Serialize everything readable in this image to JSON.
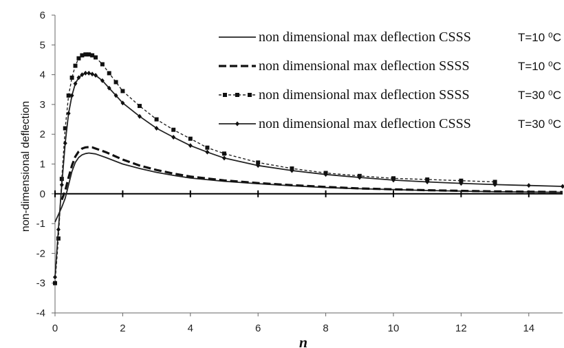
{
  "chart_data": {
    "type": "line",
    "title": "",
    "xlabel": "n",
    "ylabel": "non-dimensional deflection",
    "xlim": [
      0,
      15
    ],
    "ylim": [
      -4,
      6
    ],
    "x_ticks": [
      0,
      2,
      4,
      6,
      8,
      10,
      12,
      14
    ],
    "y_ticks": [
      -4,
      -3,
      -2,
      -1,
      0,
      1,
      2,
      3,
      4,
      5,
      6
    ],
    "grid": false,
    "legend_position": "top-right",
    "series": [
      {
        "name": "non dimensional max deflection CSSS",
        "temperature_label": "T=10 ⁰C",
        "style": "solid",
        "marker": "none",
        "x": [
          0,
          0.1,
          0.2,
          0.3,
          0.4,
          0.5,
          0.6,
          0.7,
          0.8,
          0.9,
          1.0,
          1.2,
          1.5,
          2,
          2.5,
          3,
          3.5,
          4,
          5,
          6,
          7,
          8,
          9,
          10,
          11,
          12,
          13,
          14,
          15
        ],
        "y": [
          -0.95,
          -0.7,
          -0.45,
          -0.15,
          0.3,
          0.75,
          1.05,
          1.22,
          1.31,
          1.35,
          1.37,
          1.34,
          1.22,
          1.0,
          0.85,
          0.72,
          0.62,
          0.53,
          0.42,
          0.34,
          0.27,
          0.21,
          0.17,
          0.14,
          0.11,
          0.09,
          0.07,
          0.06,
          0.05
        ]
      },
      {
        "name": "non dimensional max deflection SSSS",
        "temperature_label": "T=10 ⁰C",
        "style": "dashed",
        "marker": "none",
        "x": [
          0.2,
          0.3,
          0.4,
          0.5,
          0.6,
          0.7,
          0.8,
          0.9,
          1.0,
          1.1,
          1.2,
          1.5,
          2,
          2.5,
          3,
          3.5,
          4,
          5,
          6,
          7,
          8,
          9,
          10,
          11,
          12,
          13,
          14,
          15
        ],
        "y": [
          -0.2,
          0.1,
          0.55,
          0.95,
          1.25,
          1.42,
          1.52,
          1.56,
          1.57,
          1.56,
          1.52,
          1.4,
          1.15,
          0.95,
          0.8,
          0.68,
          0.58,
          0.45,
          0.36,
          0.29,
          0.23,
          0.18,
          0.15,
          0.12,
          0.1,
          0.08,
          0.07,
          0.06
        ]
      },
      {
        "name": "non dimensional max deflection SSSS",
        "temperature_label": "T=30 ⁰C",
        "style": "dotted",
        "marker": "square",
        "x": [
          0,
          0.1,
          0.2,
          0.3,
          0.4,
          0.5,
          0.6,
          0.7,
          0.8,
          0.9,
          1.0,
          1.1,
          1.2,
          1.4,
          1.6,
          1.8,
          2,
          2.5,
          3,
          3.5,
          4,
          4.5,
          5,
          6,
          7,
          8,
          9,
          10,
          11,
          12,
          13
        ],
        "y": [
          -3.0,
          -1.5,
          0.5,
          2.2,
          3.3,
          3.9,
          4.3,
          4.55,
          4.65,
          4.68,
          4.68,
          4.65,
          4.58,
          4.35,
          4.05,
          3.75,
          3.45,
          2.95,
          2.5,
          2.15,
          1.85,
          1.55,
          1.35,
          1.05,
          0.85,
          0.7,
          0.6,
          0.52,
          0.48,
          0.44,
          0.4
        ]
      },
      {
        "name": "non dimensional max deflection CSSS",
        "temperature_label": "T=30 ⁰C",
        "style": "solid",
        "marker": "diamond",
        "x": [
          0,
          0.1,
          0.2,
          0.3,
          0.4,
          0.5,
          0.6,
          0.7,
          0.8,
          0.9,
          1.0,
          1.1,
          1.2,
          1.4,
          1.6,
          1.8,
          2,
          2.5,
          3,
          3.5,
          4,
          4.5,
          5,
          6,
          7,
          8,
          9,
          10,
          11,
          12,
          13,
          14,
          15
        ],
        "y": [
          -2.8,
          -1.2,
          0.3,
          1.7,
          2.7,
          3.3,
          3.7,
          3.9,
          4.0,
          4.05,
          4.05,
          4.02,
          3.98,
          3.8,
          3.55,
          3.3,
          3.05,
          2.6,
          2.2,
          1.9,
          1.62,
          1.4,
          1.2,
          0.95,
          0.78,
          0.65,
          0.55,
          0.46,
          0.4,
          0.35,
          0.31,
          0.28,
          0.25
        ]
      }
    ]
  }
}
